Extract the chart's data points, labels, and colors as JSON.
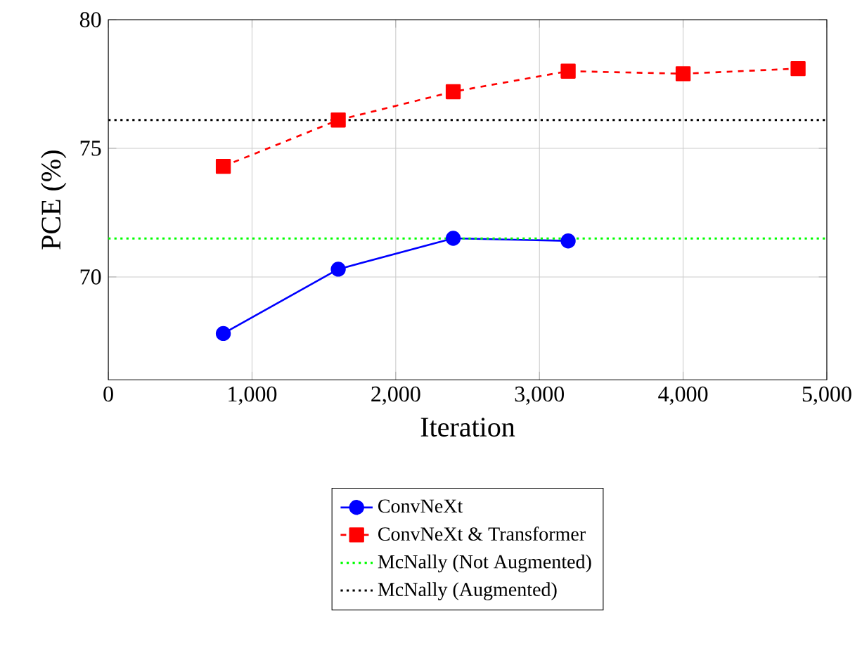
{
  "chart_data": {
    "type": "line",
    "xlabel": "Iteration",
    "ylabel": "PCE (%)",
    "x": [
      800,
      1600,
      2400,
      3200,
      4000,
      4800
    ],
    "series": [
      {
        "name": "ConvNeXt",
        "color": "#0000ff",
        "marker": "circle",
        "line_style": "solid",
        "values": [
          67.8,
          70.3,
          71.5,
          71.4,
          null,
          null
        ]
      },
      {
        "name": "ConvNeXt & Transformer",
        "color": "#ff0000",
        "marker": "square",
        "line_style": "dashed",
        "values": [
          74.3,
          76.1,
          77.2,
          78.0,
          77.9,
          78.1
        ]
      }
    ],
    "ref_lines": [
      {
        "axis": "y",
        "value": 71.5,
        "label": "McNally (Not Augmented)",
        "color": "#00ff00",
        "line_style": "dotted"
      },
      {
        "axis": "y",
        "value": 76.1,
        "label": "McNally (Augmented)",
        "color": "#000000",
        "line_style": "dotted"
      }
    ],
    "xlim": [
      0,
      5000
    ],
    "ylim": [
      66,
      80
    ],
    "xticks": [
      0,
      {
        "value": 1000,
        "label": "1,000"
      },
      {
        "value": 2000,
        "label": "2,000"
      },
      {
        "value": 3000,
        "label": "3,000"
      },
      {
        "value": 4000,
        "label": "4,000"
      },
      {
        "value": 5000,
        "label": "5,000"
      }
    ],
    "yticks": [
      70,
      75,
      80
    ],
    "grid": true,
    "legend": "bottom"
  }
}
